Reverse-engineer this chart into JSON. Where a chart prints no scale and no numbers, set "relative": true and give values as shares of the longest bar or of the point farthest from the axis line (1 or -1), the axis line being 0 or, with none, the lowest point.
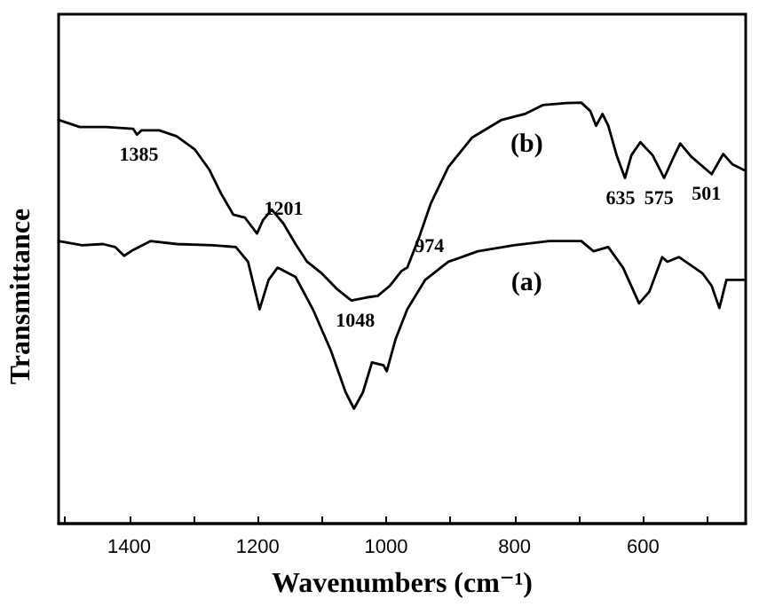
{
  "chart_data": {
    "type": "line",
    "relative": true,
    "xlabel": "Wavenumbers (cm⁻¹)",
    "ylabel": "Transmittance",
    "xlim": [
      1510,
      440
    ],
    "xticks": [
      {
        "value": 1500,
        "label": null
      },
      1400,
      {
        "value": 1300,
        "label": null
      },
      1200,
      {
        "value": 1100,
        "label": null
      },
      1000,
      {
        "value": 900,
        "label": null
      },
      800,
      {
        "value": 700,
        "label": null
      },
      600,
      {
        "value": 500,
        "label": null
      }
    ],
    "grid": false,
    "legend": false,
    "marker": "none",
    "line_style": "solid",
    "series": [
      {
        "name": "(b)",
        "color": "#000000",
        "x": [
          1510,
          1477,
          1436,
          1394,
          1388,
          1381,
          1353,
          1326,
          1298,
          1275,
          1257,
          1238,
          1220,
          1213,
          1201,
          1192,
          1178,
          1160,
          1141,
          1123,
          1100,
          1077,
          1054,
          1031,
          1013,
          994,
          976,
          967,
          949,
          930,
          903,
          866,
          820,
          784,
          756,
          719,
          696,
          682,
          673,
          663,
          654,
          641,
          628,
          618,
          604,
          585,
          567,
          553,
          542,
          525,
          493,
          475,
          461,
          443
        ],
        "values": [
          0.959,
          0.942,
          0.942,
          0.938,
          0.924,
          0.934,
          0.934,
          0.92,
          0.889,
          0.84,
          0.784,
          0.734,
          0.727,
          0.713,
          0.689,
          0.72,
          0.746,
          0.713,
          0.664,
          0.622,
          0.594,
          0.558,
          0.53,
          0.537,
          0.541,
          0.565,
          0.6,
          0.608,
          0.678,
          0.762,
          0.847,
          0.917,
          0.959,
          0.973,
          0.994,
          0.999,
          1.0,
          0.98,
          0.945,
          0.973,
          0.945,
          0.875,
          0.821,
          0.875,
          0.906,
          0.875,
          0.821,
          0.868,
          0.903,
          0.872,
          0.83,
          0.878,
          0.854,
          0.84
        ]
      },
      {
        "name": "(a)",
        "color": "#000000",
        "x": [
          1510,
          1473,
          1441,
          1422,
          1408,
          1394,
          1367,
          1326,
          1270,
          1234,
          1215,
          1197,
          1183,
          1169,
          1141,
          1114,
          1086,
          1063,
          1050,
          1036,
          1022,
          1004,
          999,
          985,
          967,
          939,
          903,
          857,
          801,
          746,
          696,
          677,
          654,
          631,
          606,
          590,
          570,
          562,
          544,
          507,
          493,
          481,
          470,
          443
        ],
        "values": [
          0.671,
          0.661,
          0.664,
          0.657,
          0.636,
          0.65,
          0.671,
          0.664,
          0.661,
          0.657,
          0.622,
          0.509,
          0.579,
          0.608,
          0.586,
          0.509,
          0.411,
          0.312,
          0.273,
          0.312,
          0.383,
          0.376,
          0.362,
          0.439,
          0.509,
          0.579,
          0.622,
          0.647,
          0.661,
          0.671,
          0.671,
          0.647,
          0.657,
          0.608,
          0.523,
          0.551,
          0.633,
          0.622,
          0.633,
          0.594,
          0.565,
          0.512,
          0.579,
          0.579
        ]
      }
    ],
    "annotations": [
      {
        "text": "1385",
        "x": 1385,
        "y": 0.924
      },
      {
        "text": "1201",
        "x": 1201,
        "y": 0.689
      },
      {
        "text": "974",
        "x": 974,
        "y": 0.6
      },
      {
        "text": "1048",
        "x": 1048,
        "y": 0.53
      },
      {
        "text": "635",
        "x": 635,
        "y": 0.821
      },
      {
        "text": "575",
        "x": 575,
        "y": 0.821
      },
      {
        "text": "501",
        "x": 501,
        "y": 0.83
      }
    ]
  }
}
